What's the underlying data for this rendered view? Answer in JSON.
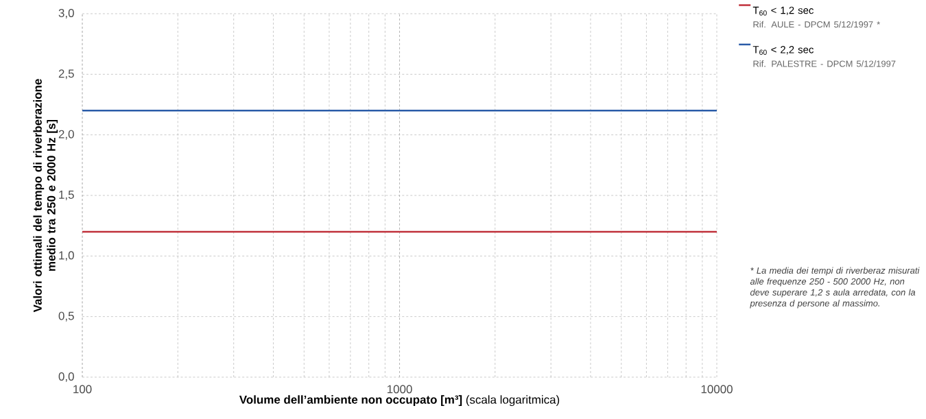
{
  "chart_data": {
    "type": "line",
    "xlabel": "**Volume dell’ambiente non occupato [m³]** (scala logaritmica)",
    "ylabel": "Valori ottimali del tempo di riverberazione medio tra 250 e 2000 Hz [s]",
    "x": [
      100,
      10000
    ],
    "series": [
      {
        "name": "T$_{60}$ < 1,2 sec",
        "color": "#c0303a",
        "values": [
          1.2,
          1.2
        ]
      },
      {
        "name": "T$_{60}$ < 2,2 sec",
        "color": "#2a5ca8",
        "values": [
          2.2,
          2.2
        ]
      }
    ],
    "log": "x",
    "xlim": [
      100,
      10000
    ],
    "xticks": [
      100,
      1000,
      10000
    ],
    "ylim": [
      0,
      3
    ],
    "yticks": [
      {
        "value": 0,
        "label": "0,0"
      },
      {
        "value": 0.5,
        "label": "0,5"
      },
      {
        "value": 1,
        "label": "1,0"
      },
      {
        "value": 1.5,
        "label": "1,5"
      },
      {
        "value": 2,
        "label": "2,0"
      },
      {
        "value": 2.5,
        "label": "2,5"
      },
      {
        "value": 3,
        "label": "3,0"
      }
    ],
    "grid": true,
    "legend": "right",
    "marker": "none",
    "line_style": "solid",
    "annotations": [
      "Rif. AULE - DPCM 5/12/1997 *",
      "Rif. PALESTRE - DPCM 5/12/1997",
      "* La media dei tempi di riverberaz misurati alle frequenze 250 - 500 2000 Hz, non deve superare 1,2 s aula arredata, con la presenza d persone al massimo."
    ]
  }
}
